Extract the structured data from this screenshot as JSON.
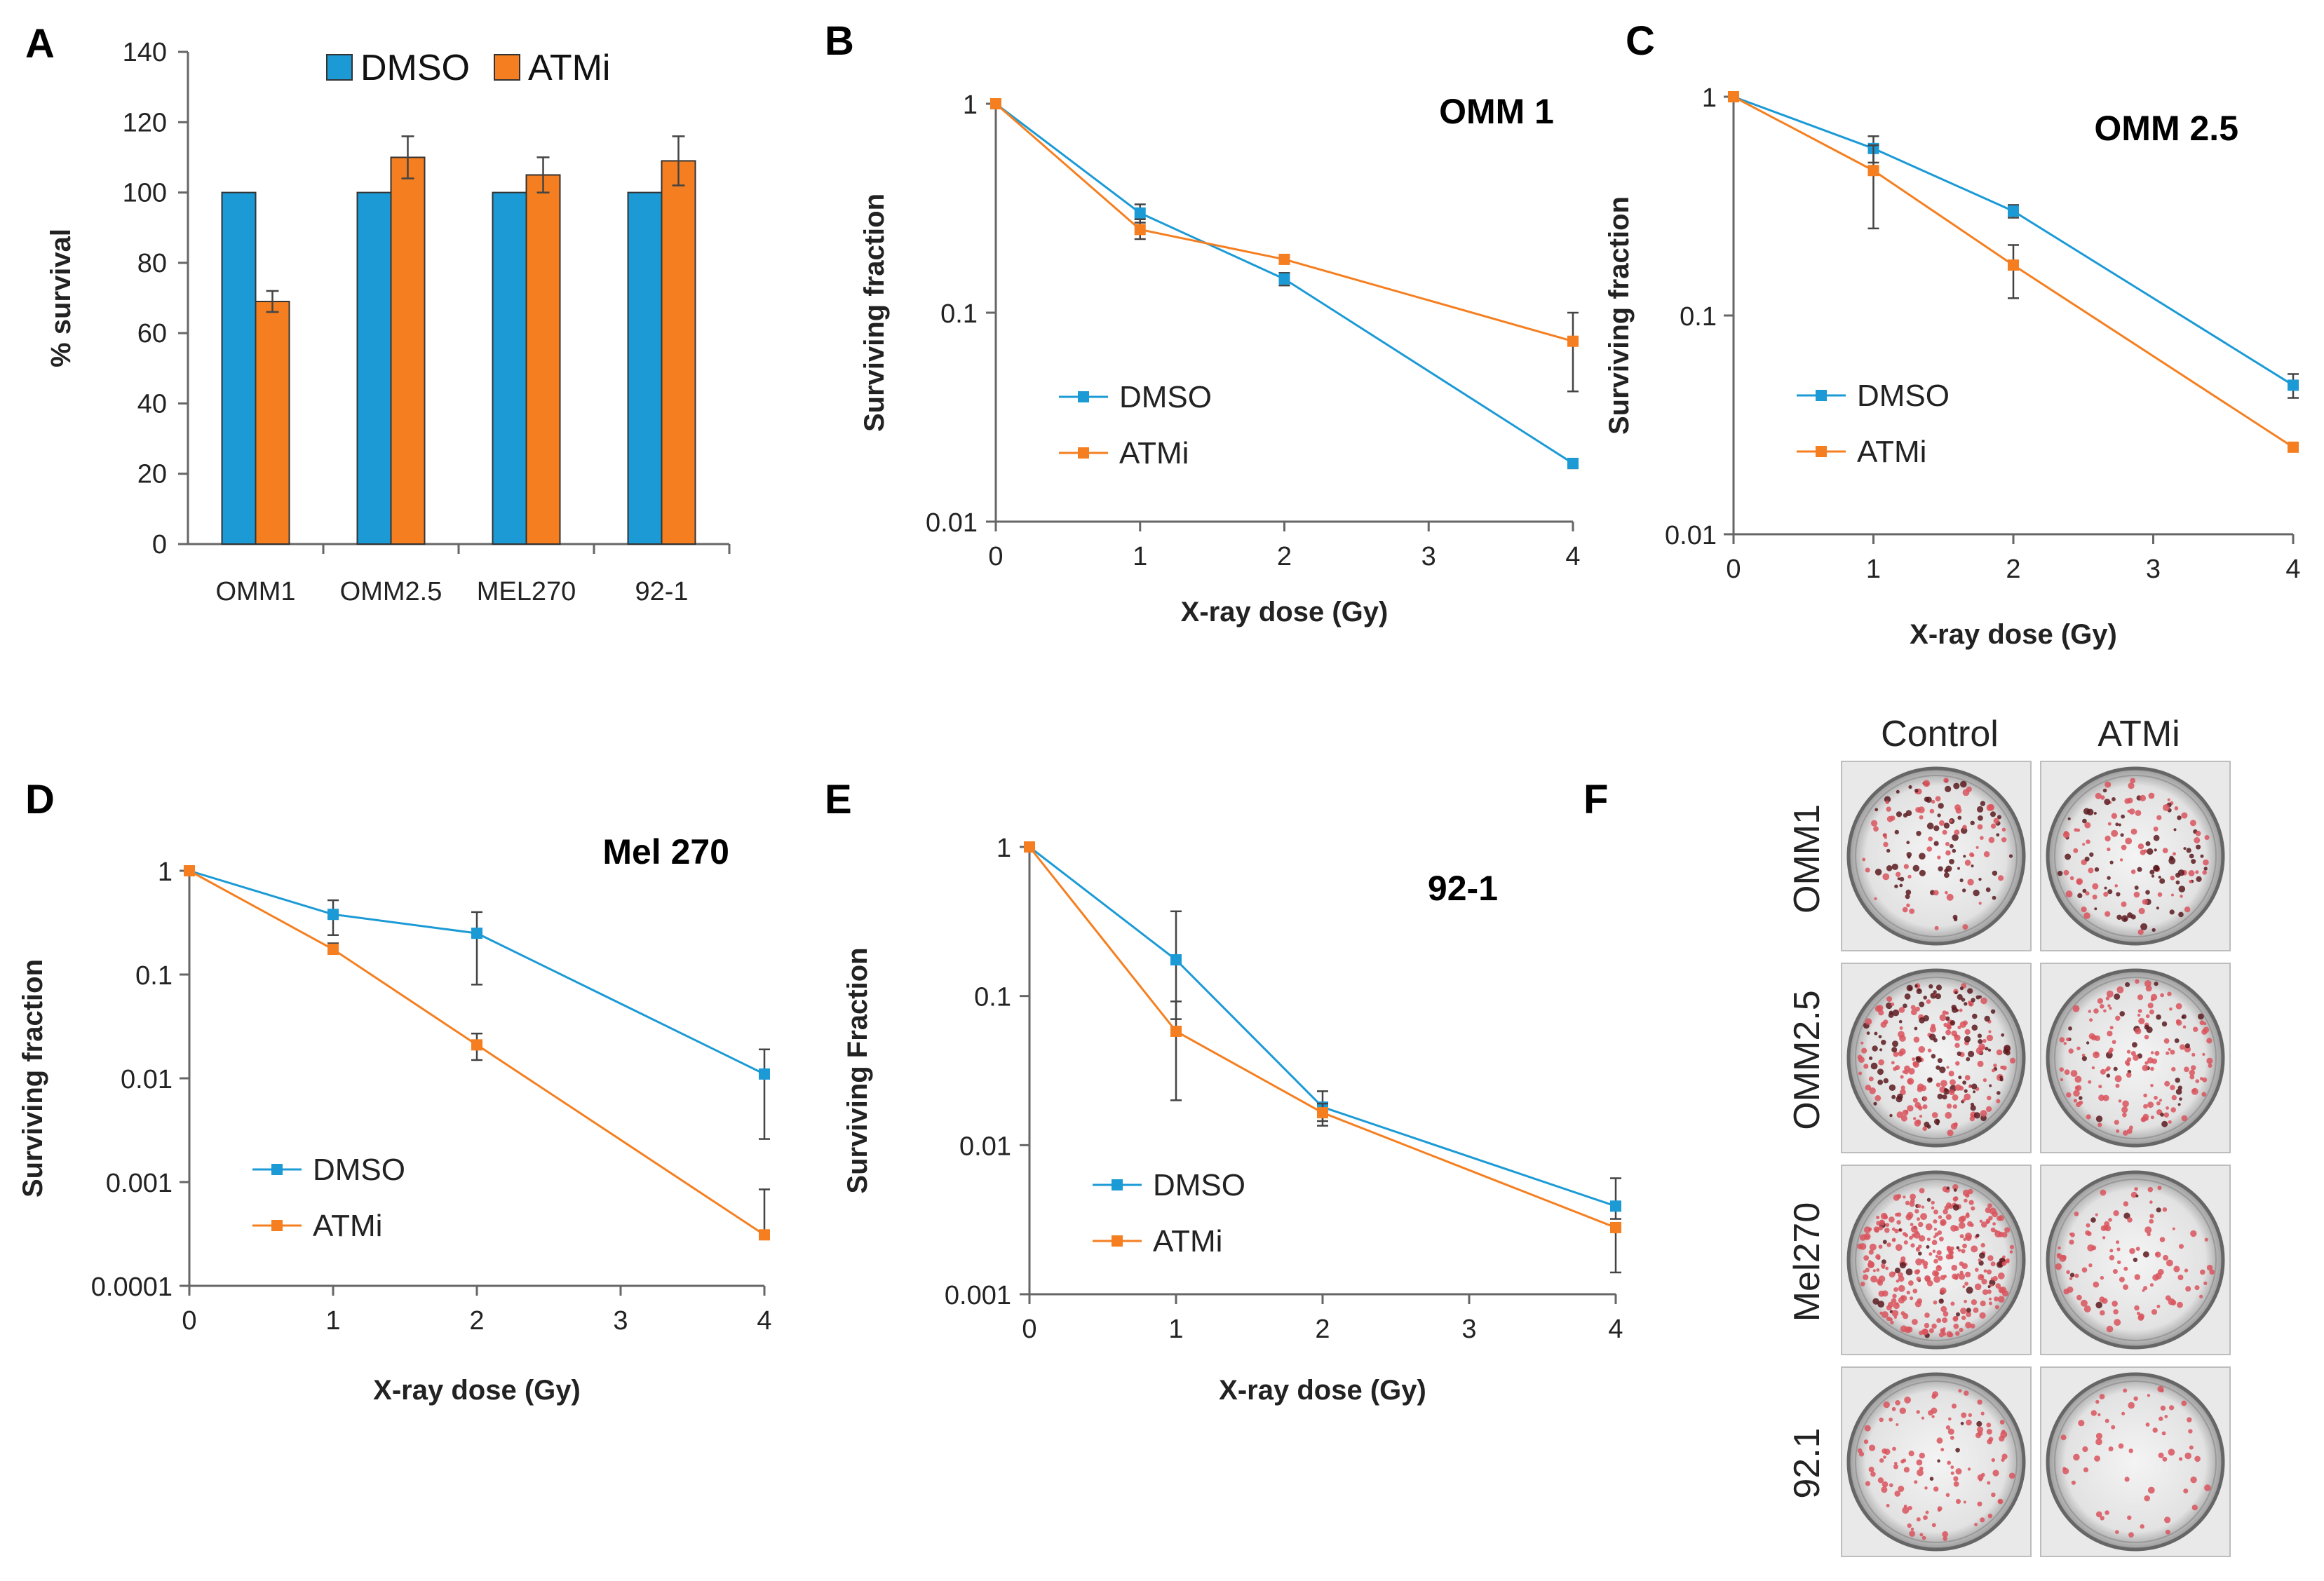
{
  "colors": {
    "dmso": "#1b9ad6",
    "atmi": "#f57f20",
    "axis": "#666666",
    "error": "#444444"
  },
  "panel_F": {
    "letter": "F",
    "columns": [
      "Control",
      "ATMi"
    ],
    "rows": [
      "OMM1",
      "OMM2.5",
      "Mel270",
      "92.1"
    ]
  },
  "chart_data": [
    {
      "id": "A",
      "letter": "A",
      "type": "bar",
      "title": "",
      "xlabel": "",
      "ylabel": "% survival",
      "ylim": [
        0,
        140
      ],
      "yticks": [
        0,
        20,
        40,
        60,
        80,
        100,
        120,
        140
      ],
      "categories": [
        "OMM1",
        "OMM2.5",
        "MEL270",
        "92-1"
      ],
      "legend": {
        "position": "top",
        "entries": [
          "DMSO",
          "ATMi"
        ]
      },
      "series": [
        {
          "name": "DMSO",
          "values": [
            100,
            100,
            100,
            100
          ],
          "errors": [
            0,
            0,
            0,
            0
          ]
        },
        {
          "name": "ATMi",
          "values": [
            69,
            110,
            105,
            109
          ],
          "errors": [
            3,
            6,
            5,
            7
          ]
        }
      ]
    },
    {
      "id": "B",
      "letter": "B",
      "type": "line",
      "title": "OMM 1",
      "xlabel": "X-ray dose (Gy)",
      "ylabel": "Surviving fraction",
      "yscale": "log",
      "ylim": [
        0.01,
        1
      ],
      "yticks": [
        0.01,
        0.1,
        1
      ],
      "yticklabels": [
        "0.01",
        "0.1",
        "1"
      ],
      "xlim": [
        0,
        4
      ],
      "xticks": [
        0,
        1,
        2,
        3,
        4
      ],
      "legend": {
        "position": "left-bottom",
        "entries": [
          "DMSO",
          "ATMi"
        ]
      },
      "series": [
        {
          "name": "DMSO",
          "x": [
            0,
            1,
            2,
            4
          ],
          "values": [
            1,
            0.3,
            0.145,
            0.019
          ],
          "errors_low": [
            null,
            0.27,
            0.135,
            0.018
          ],
          "errors_high": [
            null,
            0.33,
            0.155,
            0.02
          ]
        },
        {
          "name": "ATMi",
          "x": [
            0,
            1,
            2,
            4
          ],
          "values": [
            1,
            0.25,
            0.18,
            0.073
          ],
          "errors_low": [
            null,
            0.225,
            null,
            0.042
          ],
          "errors_high": [
            null,
            0.28,
            null,
            0.1
          ]
        }
      ]
    },
    {
      "id": "C",
      "letter": "C",
      "type": "line",
      "title": "OMM 2.5",
      "xlabel": "X-ray dose (Gy)",
      "ylabel": "Surviving fraction",
      "yscale": "log",
      "ylim": [
        0.01,
        1
      ],
      "yticks": [
        0.01,
        0.1,
        1
      ],
      "yticklabels": [
        "0.01",
        "0.1",
        "1"
      ],
      "xlim": [
        0,
        4
      ],
      "xticks": [
        0,
        1,
        2,
        3,
        4
      ],
      "legend": {
        "position": "left-bottom",
        "entries": [
          "DMSO",
          "ATMi"
        ]
      },
      "series": [
        {
          "name": "DMSO",
          "x": [
            0,
            1,
            2,
            4
          ],
          "values": [
            1,
            0.58,
            0.3,
            0.048
          ],
          "errors_low": [
            null,
            0.5,
            0.28,
            0.042
          ],
          "errors_high": [
            null,
            0.66,
            0.32,
            0.054
          ]
        },
        {
          "name": "ATMi",
          "x": [
            0,
            1,
            2,
            4
          ],
          "values": [
            1,
            0.46,
            0.17,
            0.025
          ],
          "errors_low": [
            null,
            0.25,
            0.12,
            null
          ],
          "errors_high": [
            null,
            0.6,
            0.21,
            null
          ]
        }
      ]
    },
    {
      "id": "D",
      "letter": "D",
      "type": "line",
      "title": "Mel 270",
      "xlabel": "X-ray dose (Gy)",
      "ylabel": "Surviving fraction",
      "yscale": "log",
      "ylim": [
        0.0001,
        1
      ],
      "yticks": [
        0.0001,
        0.001,
        0.01,
        0.1,
        1
      ],
      "yticklabels": [
        "0.0001",
        "0.001",
        "0.01",
        "0.1",
        "1"
      ],
      "xlim": [
        0,
        4
      ],
      "xticks": [
        0,
        1,
        2,
        3,
        4
      ],
      "legend": {
        "position": "left-bottom",
        "entries": [
          "DMSO",
          "ATMi"
        ]
      },
      "series": [
        {
          "name": "DMSO",
          "x": [
            0,
            1,
            2,
            4
          ],
          "values": [
            1,
            0.38,
            0.25,
            0.011
          ],
          "errors_low": [
            null,
            0.24,
            0.08,
            0.0026
          ],
          "errors_high": [
            null,
            0.52,
            0.4,
            0.019
          ]
        },
        {
          "name": "ATMi",
          "x": [
            0,
            1,
            2,
            4
          ],
          "values": [
            1,
            0.175,
            0.021,
            0.00031
          ],
          "errors_low": [
            null,
            0.16,
            0.015,
            null
          ],
          "errors_high": [
            null,
            0.2,
            0.027,
            0.00085
          ]
        }
      ]
    },
    {
      "id": "E",
      "letter": "E",
      "type": "line",
      "title": "92-1",
      "xlabel": "X-ray dose (Gy)",
      "ylabel": "Surviving Fraction",
      "yscale": "log",
      "ylim": [
        0.001,
        1
      ],
      "yticks": [
        0.001,
        0.01,
        0.1,
        1
      ],
      "yticklabels": [
        "0.001",
        "0.01",
        "0.1",
        "1"
      ],
      "xlim": [
        0,
        4
      ],
      "xticks": [
        0,
        1,
        2,
        3,
        4
      ],
      "legend": {
        "position": "left-bottom",
        "entries": [
          "DMSO",
          "ATMi"
        ]
      },
      "series": [
        {
          "name": "DMSO",
          "x": [
            0,
            1,
            2,
            4
          ],
          "values": [
            1,
            0.175,
            0.018,
            0.0039
          ],
          "errors_low": [
            null,
            0.07,
            0.0145,
            0.0032
          ],
          "errors_high": [
            null,
            0.37,
            0.023,
            0.006
          ]
        },
        {
          "name": "ATMi",
          "x": [
            0,
            1,
            2,
            4
          ],
          "values": [
            1,
            0.058,
            0.0165,
            0.0028
          ],
          "errors_low": [
            null,
            0.02,
            0.0135,
            0.0014
          ],
          "errors_high": [
            null,
            0.092,
            0.019,
            null
          ]
        }
      ]
    }
  ]
}
